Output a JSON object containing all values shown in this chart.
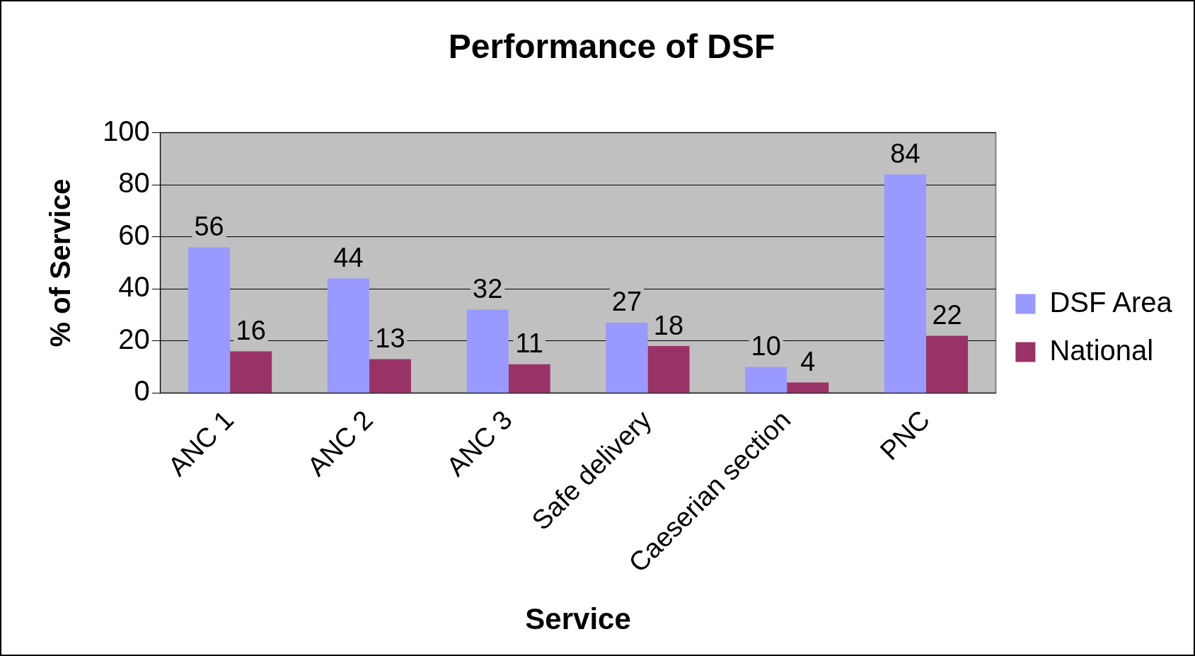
{
  "chart_data": {
    "type": "bar",
    "title": "Performance of DSF",
    "xlabel": "Service",
    "ylabel": "% of Service",
    "categories": [
      "ANC 1",
      "ANC 2",
      "ANC 3",
      "Safe delivery",
      "Caeserian section",
      "PNC"
    ],
    "series": [
      {
        "name": "DSF Area",
        "color": "#9999ff",
        "values": [
          56,
          44,
          32,
          27,
          10,
          84
        ]
      },
      {
        "name": "National",
        "color": "#993366",
        "values": [
          16,
          13,
          11,
          18,
          4,
          22
        ]
      }
    ],
    "ylim": [
      0,
      100
    ],
    "yticks": [
      0,
      20,
      40,
      60,
      80,
      100
    ],
    "grid": "y",
    "legend": "right",
    "data_labels": true
  }
}
